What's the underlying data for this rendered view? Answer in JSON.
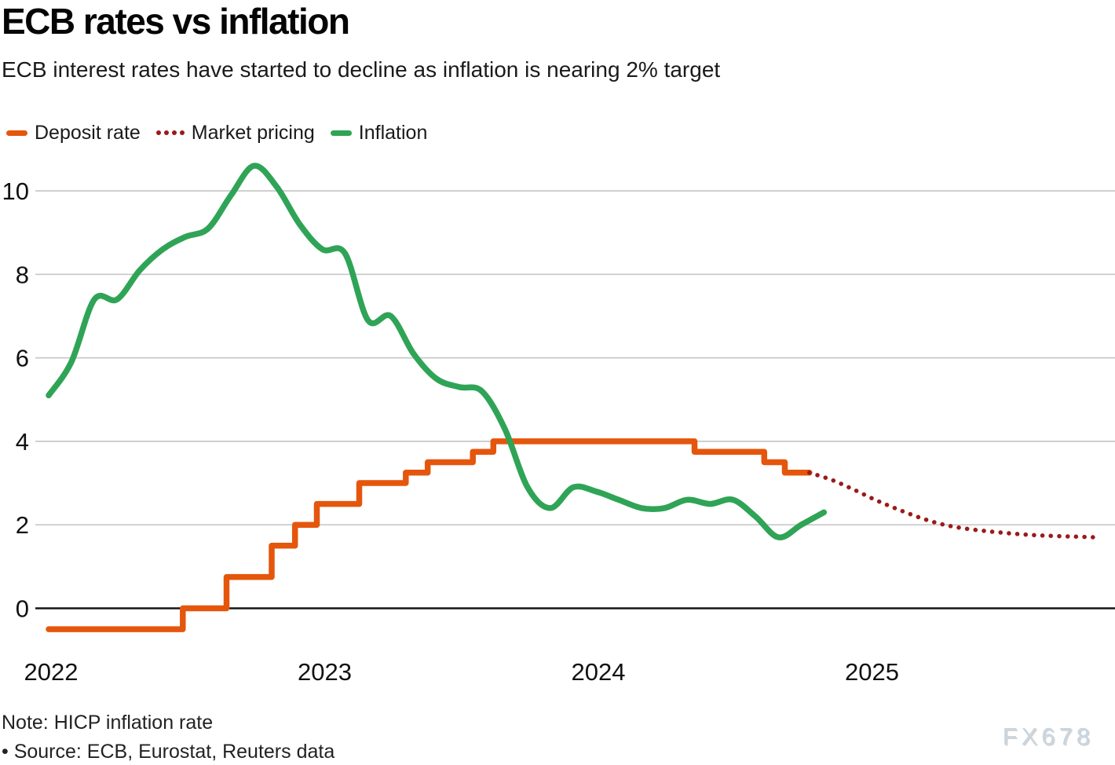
{
  "header": {
    "title": "ECB rates vs inflation",
    "subtitle": "ECB interest rates have started to decline as inflation is nearing 2% target"
  },
  "legend": [
    {
      "label": "Deposit rate",
      "color": "#E5560D",
      "style": "solid"
    },
    {
      "label": "Market pricing",
      "color": "#9B1A1A",
      "style": "dotted"
    },
    {
      "label": "Inflation",
      "color": "#2FA456",
      "style": "solid"
    }
  ],
  "footer": {
    "note": "Note: HICP inflation rate",
    "source": "• Source: ECB, Eurostat, Reuters data",
    "watermark": "FX678"
  },
  "chart_data": {
    "type": "line",
    "title": "ECB rates vs inflation",
    "xlabel": "",
    "ylabel": "",
    "x_axis": {
      "ticks": [
        2022,
        2023,
        2024,
        2025
      ],
      "range": [
        2021.95,
        2025.9
      ]
    },
    "y_axis": {
      "ticks": [
        0,
        2,
        4,
        6,
        8,
        10
      ],
      "range": [
        -0.6,
        10.9
      ],
      "grid": true,
      "gridline_color": "#c8c8c8",
      "zero_line_color": "#161616"
    },
    "legend_position": "top-left",
    "series": [
      {
        "name": "Deposit rate",
        "unit": "%",
        "color": "#E5560D",
        "line_style": "step",
        "points": [
          [
            2022.0,
            -0.5
          ],
          [
            2022.49,
            0.0
          ],
          [
            2022.65,
            0.75
          ],
          [
            2022.815,
            1.5
          ],
          [
            2022.9,
            2.0
          ],
          [
            2022.98,
            2.5
          ],
          [
            2023.135,
            3.0
          ],
          [
            2023.305,
            3.25
          ],
          [
            2023.385,
            3.5
          ],
          [
            2023.55,
            3.75
          ],
          [
            2023.625,
            4.0
          ],
          [
            2024.36,
            3.75
          ],
          [
            2024.615,
            3.5
          ],
          [
            2024.69,
            3.25
          ],
          [
            2024.78,
            3.25
          ]
        ]
      },
      {
        "name": "Market pricing",
        "unit": "%",
        "color": "#9B1A1A",
        "line_style": "dotted",
        "points": [
          [
            2024.78,
            3.25
          ],
          [
            2024.86,
            3.08
          ],
          [
            2024.94,
            2.85
          ],
          [
            2025.02,
            2.6
          ],
          [
            2025.1,
            2.38
          ],
          [
            2025.18,
            2.18
          ],
          [
            2025.26,
            2.02
          ],
          [
            2025.34,
            1.92
          ],
          [
            2025.44,
            1.84
          ],
          [
            2025.54,
            1.78
          ],
          [
            2025.64,
            1.74
          ],
          [
            2025.74,
            1.72
          ],
          [
            2025.82,
            1.7
          ]
        ]
      },
      {
        "name": "Inflation",
        "unit": "%",
        "color": "#2FA456",
        "line_style": "smooth",
        "points": [
          [
            2022.0,
            5.1
          ],
          [
            2022.083,
            5.9
          ],
          [
            2022.167,
            7.4
          ],
          [
            2022.25,
            7.4
          ],
          [
            2022.333,
            8.1
          ],
          [
            2022.417,
            8.6
          ],
          [
            2022.5,
            8.9
          ],
          [
            2022.583,
            9.1
          ],
          [
            2022.667,
            9.9
          ],
          [
            2022.75,
            10.6
          ],
          [
            2022.833,
            10.1
          ],
          [
            2022.917,
            9.2
          ],
          [
            2023.0,
            8.6
          ],
          [
            2023.083,
            8.5
          ],
          [
            2023.167,
            6.9
          ],
          [
            2023.25,
            7.0
          ],
          [
            2023.333,
            6.1
          ],
          [
            2023.417,
            5.5
          ],
          [
            2023.5,
            5.3
          ],
          [
            2023.583,
            5.2
          ],
          [
            2023.667,
            4.3
          ],
          [
            2023.75,
            2.9
          ],
          [
            2023.833,
            2.4
          ],
          [
            2023.917,
            2.9
          ],
          [
            2024.0,
            2.8
          ],
          [
            2024.083,
            2.6
          ],
          [
            2024.167,
            2.4
          ],
          [
            2024.25,
            2.4
          ],
          [
            2024.333,
            2.6
          ],
          [
            2024.417,
            2.5
          ],
          [
            2024.5,
            2.6
          ],
          [
            2024.583,
            2.2
          ],
          [
            2024.667,
            1.7
          ],
          [
            2024.75,
            2.0
          ],
          [
            2024.833,
            2.3
          ]
        ]
      }
    ]
  }
}
